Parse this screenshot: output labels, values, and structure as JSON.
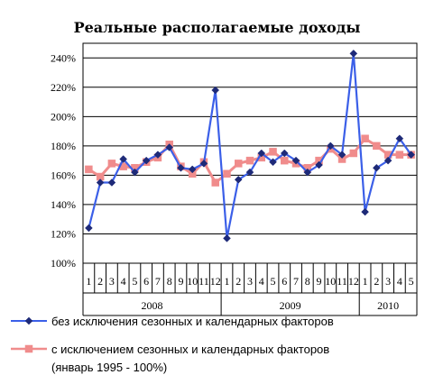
{
  "chart_data": {
    "type": "line",
    "title": "Реальные располагаемые  доходы",
    "y_ticks": [
      "100%",
      "120%",
      "140%",
      "160%",
      "180%",
      "200%",
      "220%",
      "240%"
    ],
    "ylim": [
      100,
      240
    ],
    "x_labels": [
      "1",
      "2",
      "3",
      "4",
      "5",
      "6",
      "7",
      "8",
      "9",
      "10",
      "11",
      "12",
      "1",
      "2",
      "3",
      "4",
      "5",
      "6",
      "7",
      "8",
      "9",
      "10",
      "11",
      "12",
      "1",
      "2",
      "3",
      "4",
      "5"
    ],
    "years": [
      {
        "label": "2008",
        "start": 0,
        "count": 12
      },
      {
        "label": "2009",
        "start": 12,
        "count": 12
      },
      {
        "label": "2010",
        "start": 24,
        "count": 5
      }
    ],
    "grid": "horizontal",
    "legend_position": "bottom",
    "series": [
      {
        "name": "без исключения сезонных и календарных факторов",
        "color": "#3b5fe8",
        "marker": "diamond",
        "values": [
          124,
          155,
          155,
          171,
          162,
          170,
          174,
          179,
          165,
          164,
          168,
          218,
          117,
          157,
          162,
          175,
          169,
          175,
          170,
          162,
          167,
          180,
          174,
          243,
          135,
          165,
          170,
          185,
          174
        ]
      },
      {
        "name": "с исключением сезонных и календарных факторов",
        "name_line2": "(январь 1995 - 100%)",
        "color": "#f08c8c",
        "marker": "square",
        "values": [
          164,
          159,
          168,
          166,
          165,
          169,
          172,
          181,
          166,
          161,
          169,
          155,
          161,
          168,
          170,
          172,
          176,
          170,
          168,
          165,
          170,
          178,
          171,
          175,
          185,
          180,
          174,
          174,
          174
        ]
      }
    ]
  }
}
